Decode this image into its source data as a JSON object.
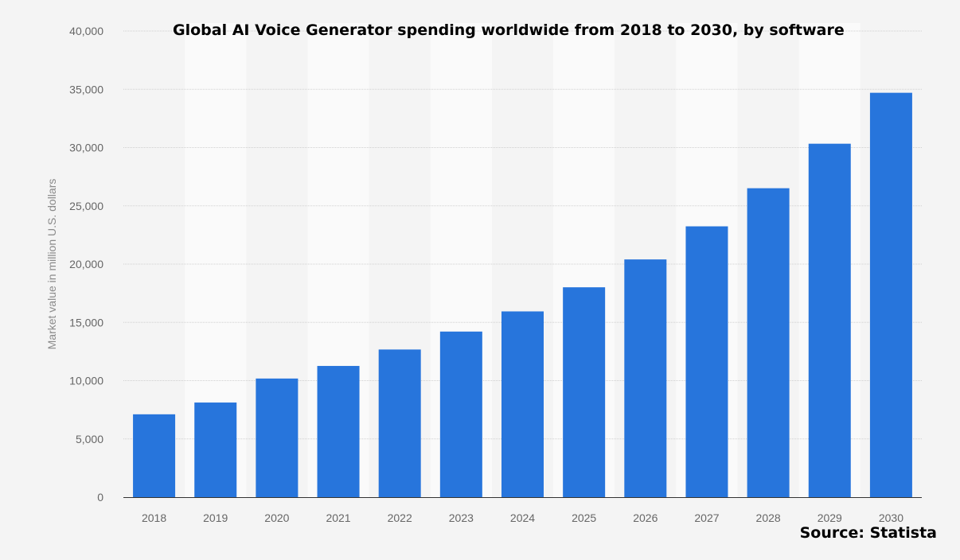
{
  "chart_data": {
    "type": "bar",
    "title": "Global AI Voice Generator spending worldwide from 2018 to 2030, by software",
    "xlabel": "",
    "ylabel": "Market value in million U.S. dollars",
    "categories": [
      "2018",
      "2019",
      "2020",
      "2021",
      "2022",
      "2023",
      "2024",
      "2025",
      "2026",
      "2027",
      "2028",
      "2029",
      "2030"
    ],
    "values": [
      7110,
      8120,
      10180,
      11260,
      12670,
      14210,
      15940,
      18010,
      20400,
      23240,
      26510,
      30330,
      34700
    ],
    "ylim": [
      0,
      40000
    ],
    "yticks": [
      0,
      5000,
      10000,
      15000,
      20000,
      25000,
      30000,
      35000,
      40000
    ],
    "ytick_labels": [
      "0",
      "5,000",
      "10,000",
      "15,000",
      "20,000",
      "25,000",
      "30,000",
      "35,000",
      "40,000"
    ],
    "grid": true,
    "bar_color": "#2775dc",
    "source": "Source: Statista"
  }
}
